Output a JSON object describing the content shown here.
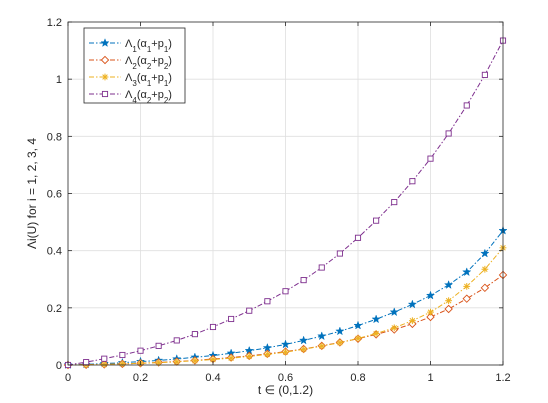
{
  "chart_data": {
    "type": "line",
    "title": "",
    "xlabel": "t ∈ (0,1.2)",
    "ylabel": "Λi(U) for i = 1, 2, 3, 4",
    "xlim": [
      0,
      1.2
    ],
    "ylim": [
      0,
      1.2
    ],
    "x_ticks": [
      "0",
      "0.2",
      "0.4",
      "0.6",
      "0.8",
      "1",
      "1.2"
    ],
    "y_ticks": [
      "0",
      "0.2",
      "0.4",
      "0.6",
      "0.8",
      "1",
      "1.2"
    ],
    "grid": true,
    "legend_position": "top-left",
    "x": [
      0,
      0.05,
      0.1,
      0.15,
      0.2,
      0.25,
      0.3,
      0.35,
      0.4,
      0.45,
      0.5,
      0.55,
      0.6,
      0.65,
      0.7,
      0.75,
      0.8,
      0.85,
      0.9,
      0.95,
      1.0,
      1.05,
      1.1,
      1.15,
      1.2
    ],
    "series": [
      {
        "name": "Λ1(α1+p1)",
        "color": "#0072BD",
        "marker": "star",
        "values": [
          0.0,
          0.002,
          0.005,
          0.008,
          0.012,
          0.016,
          0.021,
          0.027,
          0.033,
          0.041,
          0.05,
          0.06,
          0.072,
          0.086,
          0.101,
          0.118,
          0.138,
          0.16,
          0.185,
          0.212,
          0.243,
          0.28,
          0.325,
          0.39,
          0.47
        ]
      },
      {
        "name": "Λ2(α2+p2)",
        "color": "#D95319",
        "marker": "diamond",
        "values": [
          0.0,
          0.001,
          0.002,
          0.004,
          0.006,
          0.009,
          0.012,
          0.016,
          0.021,
          0.026,
          0.032,
          0.039,
          0.047,
          0.056,
          0.067,
          0.079,
          0.092,
          0.107,
          0.124,
          0.144,
          0.168,
          0.196,
          0.232,
          0.27,
          0.315
        ]
      },
      {
        "name": "Λ3(α1+p1)",
        "color": "#EDB120",
        "marker": "asterisk",
        "values": [
          0.0,
          0.001,
          0.002,
          0.004,
          0.006,
          0.008,
          0.011,
          0.015,
          0.019,
          0.024,
          0.03,
          0.037,
          0.045,
          0.055,
          0.066,
          0.078,
          0.093,
          0.11,
          0.13,
          0.155,
          0.185,
          0.225,
          0.275,
          0.335,
          0.41
        ]
      },
      {
        "name": "Λ4(α2+p2)",
        "color": "#7E2F8E",
        "marker": "square",
        "values": [
          0.0,
          0.01,
          0.022,
          0.035,
          0.05,
          0.067,
          0.086,
          0.108,
          0.133,
          0.161,
          0.19,
          0.223,
          0.258,
          0.297,
          0.341,
          0.39,
          0.445,
          0.505,
          0.57,
          0.643,
          0.722,
          0.81,
          0.908,
          1.015,
          1.135
        ]
      }
    ]
  }
}
